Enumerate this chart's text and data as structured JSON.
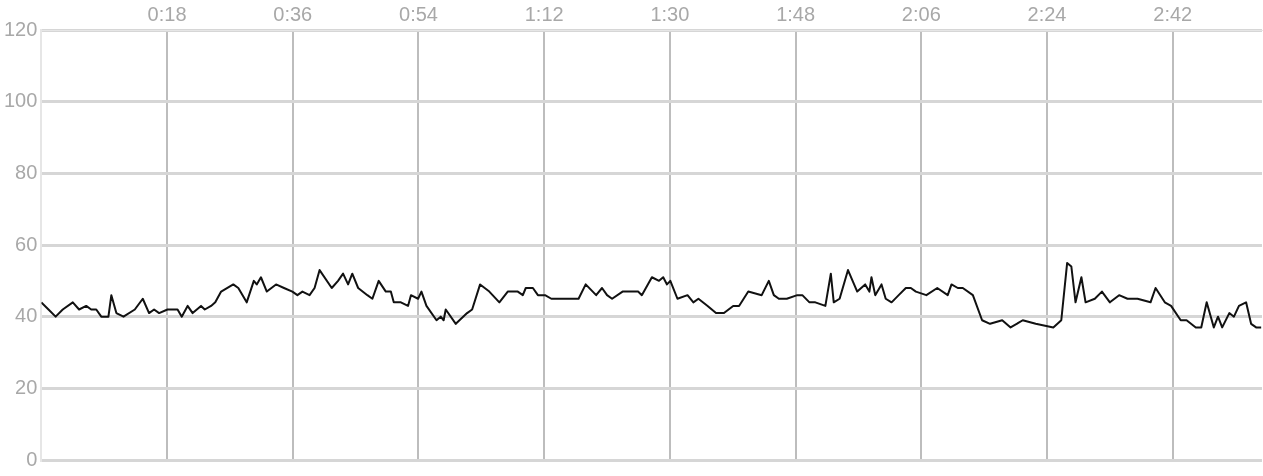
{
  "chart_data": {
    "type": "line",
    "grid": true,
    "legend": false,
    "marker": "none",
    "line_style": "solid",
    "xlim": [
      0,
      2.913
    ],
    "ylim": [
      0,
      120
    ],
    "xticks": [
      {
        "value": 0.3,
        "label": "0:18"
      },
      {
        "value": 0.6,
        "label": "0:36"
      },
      {
        "value": 0.9,
        "label": "0:54"
      },
      {
        "value": 1.2,
        "label": "1:12"
      },
      {
        "value": 1.5,
        "label": "1:30"
      },
      {
        "value": 1.8,
        "label": "1:48"
      },
      {
        "value": 2.1,
        "label": "2:06"
      },
      {
        "value": 2.4,
        "label": "2:24"
      },
      {
        "value": 2.7,
        "label": "2:42"
      }
    ],
    "yticks": [
      0,
      20,
      40,
      60,
      80,
      100,
      120
    ],
    "series": [
      {
        "color": "#111111",
        "x": [
          0,
          0.017,
          0.034,
          0.051,
          0.075,
          0.09,
          0.107,
          0.119,
          0.131,
          0.143,
          0.16,
          0.167,
          0.179,
          0.196,
          0.223,
          0.242,
          0.257,
          0.269,
          0.281,
          0.301,
          0.325,
          0.335,
          0.349,
          0.361,
          0.381,
          0.39,
          0.405,
          0.415,
          0.429,
          0.458,
          0.47,
          0.49,
          0.507,
          0.514,
          0.524,
          0.538,
          0.56,
          0.579,
          0.599,
          0.611,
          0.623,
          0.64,
          0.652,
          0.664,
          0.693,
          0.708,
          0.72,
          0.732,
          0.742,
          0.756,
          0.778,
          0.79,
          0.805,
          0.822,
          0.834,
          0.841,
          0.858,
          0.875,
          0.882,
          0.899,
          0.907,
          0.919,
          0.943,
          0.953,
          0.96,
          0.965,
          0.989,
          1.016,
          1.028,
          1.047,
          1.069,
          1.093,
          1.113,
          1.137,
          1.149,
          1.156,
          1.173,
          1.185,
          1.202,
          1.217,
          1.234,
          1.251,
          1.265,
          1.282,
          1.299,
          1.324,
          1.338,
          1.35,
          1.362,
          1.387,
          1.404,
          1.424,
          1.433,
          1.457,
          1.474,
          1.484,
          1.493,
          1.501,
          1.518,
          1.542,
          1.556,
          1.568,
          1.59,
          1.61,
          1.629,
          1.651,
          1.665,
          1.687,
          1.719,
          1.736,
          1.748,
          1.76,
          1.779,
          1.804,
          1.816,
          1.833,
          1.847,
          1.871,
          1.884,
          1.891,
          1.905,
          1.925,
          1.947,
          1.966,
          1.976,
          1.981,
          1.99,
          2.005,
          2.015,
          2.029,
          2.046,
          2.063,
          2.075,
          2.087,
          2.112,
          2.138,
          2.163,
          2.172,
          2.187,
          2.199,
          2.223,
          2.245,
          2.264,
          2.293,
          2.313,
          2.342,
          2.373,
          2.415,
          2.434,
          2.448,
          2.458,
          2.468,
          2.482,
          2.492,
          2.514,
          2.531,
          2.55,
          2.572,
          2.592,
          2.616,
          2.647,
          2.659,
          2.681,
          2.696,
          2.719,
          2.733,
          2.755,
          2.768,
          2.781,
          2.798,
          2.808,
          2.818,
          2.835,
          2.846,
          2.858,
          2.875,
          2.887,
          2.899,
          2.911
        ],
        "values": [
          44,
          42,
          40,
          42,
          44,
          42,
          43,
          42,
          42,
          40,
          40,
          46,
          41,
          40,
          42,
          45,
          41,
          42,
          41,
          42,
          42,
          40,
          43,
          41,
          43,
          42,
          43,
          44,
          47,
          49,
          48,
          44,
          50,
          49,
          51,
          47,
          49,
          48,
          47,
          46,
          47,
          46,
          48,
          53,
          48,
          50,
          52,
          49,
          52,
          48,
          46,
          45,
          50,
          47,
          47,
          44,
          44,
          43,
          46,
          45,
          47,
          43,
          39,
          40,
          39,
          42,
          38,
          41,
          42,
          49,
          47,
          44,
          47,
          47,
          46,
          48,
          48,
          46,
          46,
          45,
          45,
          45,
          45,
          45,
          49,
          46,
          48,
          46,
          45,
          47,
          47,
          47,
          46,
          51,
          50,
          51,
          49,
          50,
          45,
          46,
          44,
          45,
          43,
          41,
          41,
          43,
          43,
          47,
          46,
          50,
          46,
          45,
          45,
          46,
          46,
          44,
          44,
          43,
          52,
          44,
          45,
          53,
          47,
          49,
          47,
          51,
          46,
          49,
          45,
          44,
          46,
          48,
          48,
          47,
          46,
          48,
          46,
          49,
          48,
          48,
          46,
          39,
          38,
          39,
          37,
          39,
          38,
          37,
          39,
          55,
          54,
          44,
          51,
          44,
          45,
          47,
          44,
          46,
          45,
          45,
          44,
          48,
          44,
          43,
          39,
          39,
          37,
          37,
          44,
          37,
          40,
          37,
          41,
          40,
          43,
          44,
          38,
          37,
          37
        ]
      }
    ]
  }
}
